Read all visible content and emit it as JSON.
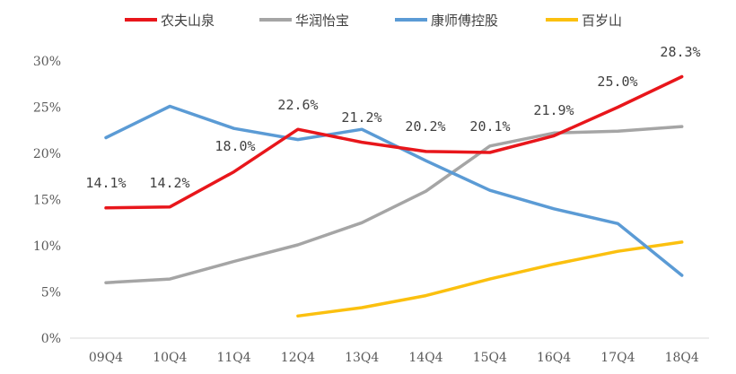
{
  "chart_data": {
    "type": "line",
    "title": "",
    "xlabel": "",
    "ylabel": "",
    "ylim": [
      0,
      30
    ],
    "y_ticks": [
      "0%",
      "5%",
      "10%",
      "15%",
      "20%",
      "25%",
      "30%"
    ],
    "y_tick_values": [
      0,
      5,
      10,
      15,
      20,
      25,
      30
    ],
    "categories": [
      "09Q4",
      "10Q4",
      "11Q4",
      "12Q4",
      "13Q4",
      "14Q4",
      "15Q4",
      "16Q4",
      "17Q4",
      "18Q4"
    ],
    "legend_position": "top",
    "series": [
      {
        "name": "农夫山泉",
        "color": "#e8161b",
        "values": [
          14.1,
          14.2,
          18.0,
          22.6,
          21.2,
          20.2,
          20.1,
          21.9,
          25.0,
          28.3
        ],
        "labels": [
          "14.1%",
          "14.2%",
          "18.0%",
          "22.6%",
          "21.2%",
          "20.2%",
          "20.1%",
          "21.9%",
          "25.0%",
          "28.3%"
        ]
      },
      {
        "name": "华润怡宝",
        "color": "#a5a5a5",
        "values": [
          6.0,
          6.4,
          8.3,
          10.1,
          12.5,
          15.9,
          20.8,
          22.2,
          22.4,
          22.9
        ]
      },
      {
        "name": "康师傅控股",
        "color": "#5b9bd5",
        "values": [
          21.7,
          25.1,
          22.7,
          21.5,
          22.6,
          19.2,
          16.0,
          14.0,
          12.4,
          6.8
        ]
      },
      {
        "name": "百岁山",
        "color": "#fbc00f",
        "values": [
          null,
          null,
          null,
          2.4,
          3.3,
          4.6,
          6.4,
          8.0,
          9.4,
          10.4
        ]
      }
    ]
  }
}
